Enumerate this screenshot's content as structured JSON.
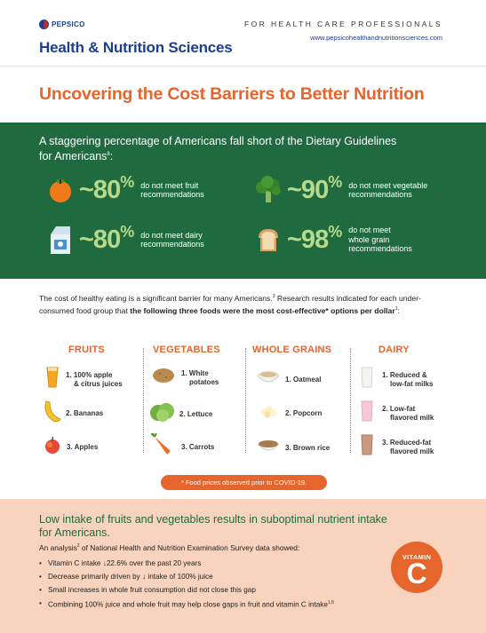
{
  "header": {
    "logo_text": "PEPSICO",
    "title": "Health & Nutrition Sciences",
    "tagline": "FOR HEALTH CARE PROFESSIONALS",
    "url": "www.pepsicohealthandnutritionsciences.com"
  },
  "main_title": "Uncovering the Cost Barriers to Better Nutrition",
  "green": {
    "intro_line1": "A staggering percentage of Americans fall short of the Dietary Guidelines",
    "intro_line2": "for Americans",
    "intro_ref": "8",
    "intro_end": ":",
    "stats": [
      {
        "icon": "orange-icon",
        "number": "~80",
        "pct": "%",
        "line1": "do not meet fruit",
        "line2": "recommendations",
        "line3": ""
      },
      {
        "icon": "broccoli-icon",
        "number": "~90",
        "pct": "%",
        "line1": "do not meet vegetable",
        "line2": "recommendations",
        "line3": ""
      },
      {
        "icon": "milk-carton-icon",
        "number": "~80",
        "pct": "%",
        "line1": "do not meet dairy",
        "line2": "recommendations",
        "line3": ""
      },
      {
        "icon": "bread-icon",
        "number": "~98",
        "pct": "%",
        "line1": "do not meet",
        "line2": "whole grain",
        "line3": "recommendations"
      }
    ]
  },
  "cost": {
    "text1": "The cost of healthy eating is a significant barrier for many Americans.",
    "ref1": "3",
    "text2": " Research results indicated for each under-consumed food group that ",
    "bold": "the following three foods were the most cost-effective* options per dollar",
    "ref2": "1",
    "end": ":"
  },
  "food_groups": [
    {
      "heading": "FRUITS",
      "items": [
        {
          "icon": "apple-juice-icon",
          "l1": "1. 100% apple",
          "l2": "& citrus juices"
        },
        {
          "icon": "banana-icon",
          "l1": "2. Bananas",
          "l2": ""
        },
        {
          "icon": "apple-icon",
          "l1": "3. Apples",
          "l2": ""
        }
      ]
    },
    {
      "heading": "VEGETABLES",
      "items": [
        {
          "icon": "potato-icon",
          "l1": "1. White",
          "l2": "potatoes"
        },
        {
          "icon": "lettuce-icon",
          "l1": "2. Lettuce",
          "l2": ""
        },
        {
          "icon": "carrot-icon",
          "l1": "3. Carrots",
          "l2": ""
        }
      ]
    },
    {
      "heading": "WHOLE GRAINS",
      "items": [
        {
          "icon": "oatmeal-icon",
          "l1": "1. Oatmeal",
          "l2": ""
        },
        {
          "icon": "popcorn-icon",
          "l1": "2. Popcorn",
          "l2": ""
        },
        {
          "icon": "brown-rice-icon",
          "l1": "3. Brown rice",
          "l2": ""
        }
      ]
    },
    {
      "heading": "DAIRY",
      "items": [
        {
          "icon": "milk-glass-icon",
          "l1": "1. Reduced &",
          "l2": "low-fat milks"
        },
        {
          "icon": "strawberry-milk-icon",
          "l1": "2. Low-fat",
          "l2": "flavored milk"
        },
        {
          "icon": "chocolate-milk-icon",
          "l1": "3. Reduced-fat",
          "l2": "flavored milk"
        }
      ]
    }
  ],
  "note": "* Food prices observed prior to COVID-19.",
  "peach": {
    "title_line1": "Low intake of fruits and vegetables results in suboptimal nutrient intake",
    "title_line2": "for Americans.",
    "intro_a": "An analysis",
    "intro_ref": "2",
    "intro_b": " of National Health and Nutrition Examination Survey data showed:",
    "bullets": [
      {
        "text": "Vitamin C intake ↓22.6% over the past 20 years",
        "ref": ""
      },
      {
        "text": "Decrease primarily driven by ↓ intake of 100% juice",
        "ref": ""
      },
      {
        "text": "Small increases in whole fruit consumption did not close this gap",
        "ref": ""
      },
      {
        "text": "Combining 100% juice and whole fruit may help close gaps in fruit and vitamin C intake",
        "ref": "1,5"
      }
    ],
    "vitamin_word": "VITAMIN",
    "vitamin_letter": "C"
  },
  "colors": {
    "brand_blue": "#1d3f8f",
    "accent_orange": "#e5652d",
    "band_green": "#1f6b3f",
    "stat_green": "#b7d98b",
    "band_peach": "#f8d3bd"
  }
}
